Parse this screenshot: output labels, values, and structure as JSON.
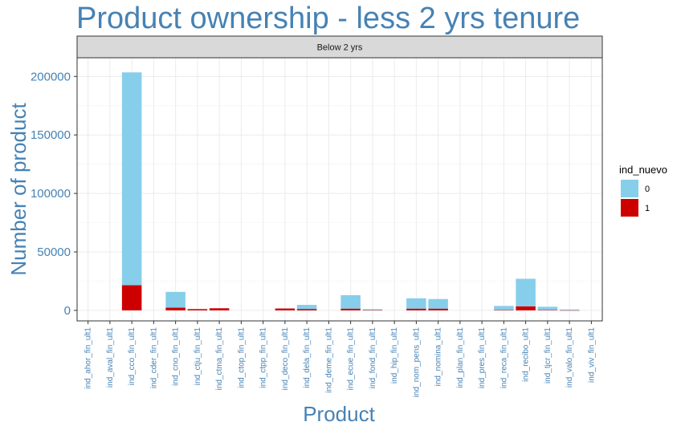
{
  "chart_data": {
    "type": "bar",
    "stacked": true,
    "title": "Product ownership - less 2 yrs tenure",
    "facet_label": "Below 2 yrs",
    "xlabel": "Product",
    "ylabel": "Number of product",
    "ylim": [
      -9000,
      216000
    ],
    "yticks": [
      0,
      50000,
      100000,
      150000,
      200000
    ],
    "ytick_labels": [
      "0",
      "50000",
      "100000",
      "150000",
      "200000"
    ],
    "grid": true,
    "legend": {
      "title": "ind_nuevo",
      "position": "right"
    },
    "categories": [
      "ind_ahor_fin_ult1",
      "ind_aval_fin_ult1",
      "ind_cco_fin_ult1",
      "ind_cder_fin_ult1",
      "ind_cno_fin_ult1",
      "ind_ctju_fin_ult1",
      "ind_ctma_fin_ult1",
      "ind_ctop_fin_ult1",
      "ind_ctpp_fin_ult1",
      "ind_deco_fin_ult1",
      "ind_dela_fin_ult1",
      "ind_deme_fin_ult1",
      "ind_ecue_fin_ult1",
      "ind_fond_fin_ult1",
      "ind_hip_fin_ult1",
      "ind_nom_pens_ult1",
      "ind_nomina_ult1",
      "ind_plan_fin_ult1",
      "ind_pres_fin_ult1",
      "ind_reca_fin_ult1",
      "ind_recibo_ult1",
      "ind_tjcr_fin_ult1",
      "ind_valo_fin_ult1",
      "ind_viv_fin_ult1"
    ],
    "series": [
      {
        "name": "0",
        "color": "#87CEEB",
        "values": [
          0,
          0,
          182000,
          0,
          13500,
          0,
          0,
          0,
          0,
          0,
          3500,
          0,
          11500,
          800,
          0,
          8800,
          8200,
          0,
          0,
          3500,
          23500,
          2800,
          700,
          0
        ]
      },
      {
        "name": "1",
        "color": "#CD0000",
        "values": [
          0,
          0,
          21500,
          0,
          2300,
          1100,
          1800,
          0,
          0,
          1600,
          1200,
          0,
          1500,
          200,
          0,
          1500,
          1500,
          0,
          0,
          300,
          3500,
          300,
          100,
          0
        ]
      }
    ]
  }
}
